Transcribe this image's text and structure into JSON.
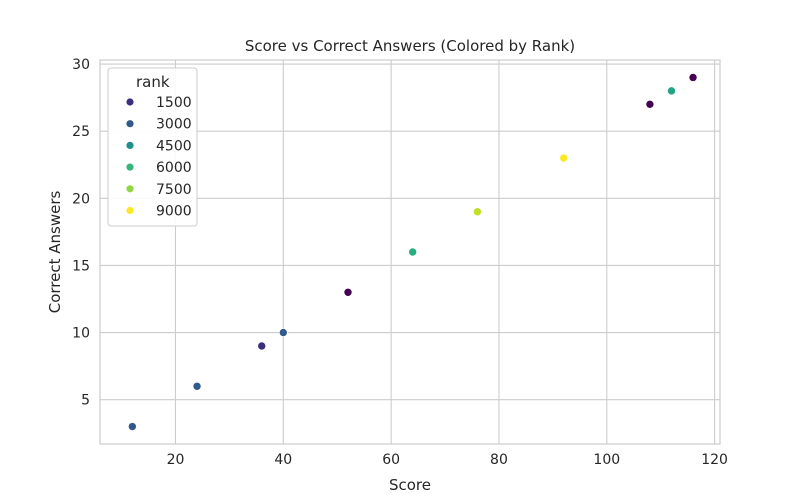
{
  "chart_data": {
    "type": "scatter",
    "title": "Score vs Correct Answers (Colored by Rank)",
    "xlabel": "Score",
    "ylabel": "Correct Answers",
    "xlim": [
      6,
      121
    ],
    "ylim": [
      1.7,
      30.3
    ],
    "xticks": [
      20,
      40,
      60,
      80,
      100,
      120
    ],
    "yticks": [
      5,
      10,
      15,
      20,
      25,
      30
    ],
    "grid": true,
    "legend": {
      "title": "rank",
      "placement": "top-left",
      "entries": [
        {
          "label": "1500",
          "color": "#3b2f7e"
        },
        {
          "label": "3000",
          "color": "#30598c"
        },
        {
          "label": "4500",
          "color": "#21908d"
        },
        {
          "label": "6000",
          "color": "#35b779"
        },
        {
          "label": "7500",
          "color": "#8fd744"
        },
        {
          "label": "9000",
          "color": "#fde725"
        }
      ]
    },
    "points": [
      {
        "x": 12,
        "y": 3,
        "color": "#30598c"
      },
      {
        "x": 24,
        "y": 6,
        "color": "#30598c"
      },
      {
        "x": 36,
        "y": 9,
        "color": "#3b2f7e"
      },
      {
        "x": 40,
        "y": 10,
        "color": "#30598c"
      },
      {
        "x": 52,
        "y": 13,
        "color": "#440154"
      },
      {
        "x": 64,
        "y": 16,
        "color": "#2aae80"
      },
      {
        "x": 76,
        "y": 19,
        "color": "#c2df23"
      },
      {
        "x": 92,
        "y": 23,
        "color": "#fde725"
      },
      {
        "x": 108,
        "y": 27,
        "color": "#440154"
      },
      {
        "x": 112,
        "y": 28,
        "color": "#21a585"
      },
      {
        "x": 116,
        "y": 29,
        "color": "#440154"
      }
    ]
  }
}
